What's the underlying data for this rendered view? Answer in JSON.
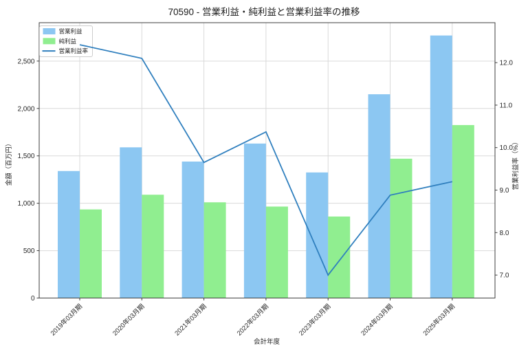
{
  "chart_data": {
    "type": "bar+line",
    "title": "70590 - 営業利益・純利益と営業利益率の推移",
    "xlabel": "会計年度",
    "ylabel_left": "金額（百万円）",
    "ylabel_right": "営業利益率（%）",
    "categories": [
      "2019年03月期",
      "2020年03月期",
      "2021年03月期",
      "2022年03月期",
      "2023年03月期",
      "2024年03月期",
      "2025年03月期"
    ],
    "series": [
      {
        "name": "営業利益",
        "type": "bar",
        "axis": "left",
        "color": "#8cc7f2",
        "values": [
          1340,
          1590,
          1440,
          1630,
          1325,
          2150,
          2770
        ]
      },
      {
        "name": "純利益",
        "type": "bar",
        "axis": "left",
        "color": "#90ee90",
        "values": [
          935,
          1090,
          1010,
          965,
          860,
          1470,
          1825
        ]
      },
      {
        "name": "営業利益率",
        "type": "line",
        "axis": "right",
        "color": "#2f7fbe",
        "values": [
          12.42,
          12.1,
          9.65,
          10.37,
          7.0,
          8.88,
          9.2
        ]
      }
    ],
    "y_axis_left": {
      "lim": [
        0,
        2905
      ],
      "ticks": [
        {
          "value": 0,
          "label": "0"
        },
        {
          "value": 500,
          "label": "500"
        },
        {
          "value": 1000,
          "label": "1,000"
        },
        {
          "value": 1500,
          "label": "1,500"
        },
        {
          "value": 2000,
          "label": "2,000"
        },
        {
          "value": 2500,
          "label": "2,500"
        }
      ]
    },
    "y_axis_right": {
      "lim": [
        6.46,
        12.94
      ],
      "ticks": [
        {
          "value": 7,
          "label": "7.0"
        },
        {
          "value": 8,
          "label": "8.0"
        },
        {
          "value": 9,
          "label": "9.0"
        },
        {
          "value": 10,
          "label": "10.0"
        },
        {
          "value": 11,
          "label": "11.0"
        },
        {
          "value": 12,
          "label": "12.0"
        }
      ]
    },
    "grid": true,
    "legend_position": "upper left"
  },
  "colors": {
    "background": "#ffffff",
    "grid": "#d9d9d9",
    "spine": "#3c3c3c",
    "tick_text": "#262626",
    "legend_border": "#cccccc",
    "legend_background": "#ffffff"
  }
}
